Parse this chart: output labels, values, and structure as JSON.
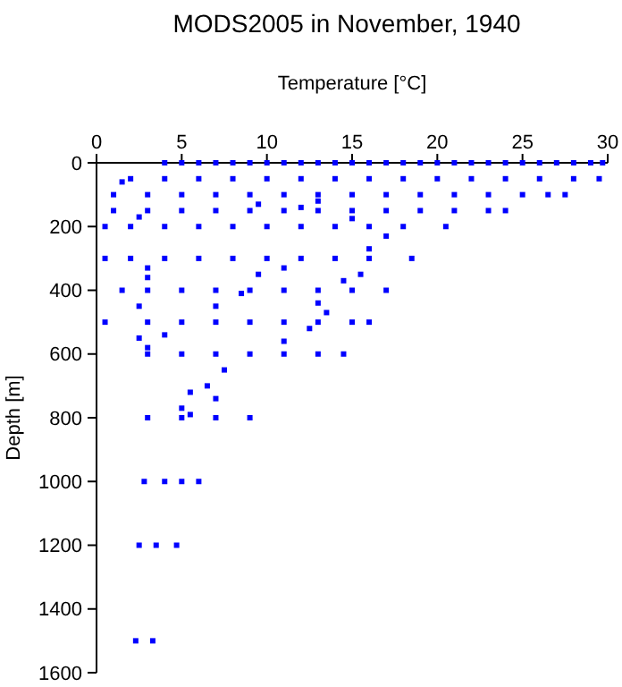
{
  "chart_data": {
    "type": "scatter",
    "title": "MODS2005 in November, 1940",
    "xlabel": "Temperature [°C]",
    "ylabel": "Depth [m]",
    "xlim": [
      0,
      30
    ],
    "ylim": [
      1600,
      0
    ],
    "xticks": [
      0,
      5,
      10,
      15,
      20,
      25,
      30
    ],
    "yticks": [
      0,
      200,
      400,
      600,
      800,
      1000,
      1200,
      1400,
      1600
    ],
    "grid": false,
    "marker": "square",
    "series": [
      {
        "color": "#0000ff",
        "x": [
          4,
          5,
          6,
          7,
          8,
          9,
          10,
          11,
          12,
          13,
          14,
          15,
          16,
          17,
          18,
          19,
          20,
          21,
          22,
          23,
          24,
          25,
          26,
          27,
          28,
          29,
          29.7,
          2,
          4,
          6,
          8,
          10,
          12,
          14,
          16,
          18,
          20,
          22,
          24,
          26,
          28,
          29.5,
          1,
          3,
          5,
          7,
          9,
          11,
          13,
          15,
          17,
          19,
          21,
          23,
          25,
          26.5,
          27.5,
          1,
          3,
          5,
          7,
          9,
          11,
          13,
          15,
          17,
          19,
          21,
          23,
          24,
          0.5,
          2,
          4,
          6,
          8,
          10,
          12,
          14,
          16,
          18,
          20.5,
          0.5,
          2,
          4,
          6,
          8,
          10,
          12,
          14,
          16,
          18.5,
          1.5,
          3,
          5,
          7,
          9,
          11,
          13,
          15,
          17,
          0.5,
          3,
          5,
          7,
          9,
          11,
          13,
          15,
          16,
          3,
          5,
          7,
          9,
          11,
          13,
          14.5,
          3,
          5,
          7,
          9,
          2.8,
          4,
          5,
          6,
          2.5,
          3.5,
          4.7,
          2.3,
          3.3,
          1.5,
          13,
          9.5,
          12,
          2.5,
          15,
          17,
          16,
          11,
          9.5,
          15.5,
          14.5,
          8.5,
          13,
          7,
          13.5,
          12.5,
          11,
          7.5,
          6.5,
          5.5,
          7,
          5,
          5.5,
          3,
          3,
          2.5,
          2.5,
          4,
          3
        ],
        "values": [
          0,
          0,
          0,
          0,
          0,
          0,
          0,
          0,
          0,
          0,
          0,
          0,
          0,
          0,
          0,
          0,
          0,
          0,
          0,
          0,
          0,
          0,
          0,
          0,
          0,
          0,
          0,
          50,
          50,
          50,
          50,
          50,
          50,
          50,
          50,
          50,
          50,
          50,
          50,
          50,
          50,
          50,
          100,
          100,
          100,
          100,
          100,
          100,
          100,
          100,
          100,
          100,
          100,
          100,
          100,
          100,
          100,
          150,
          150,
          150,
          150,
          150,
          150,
          150,
          150,
          150,
          150,
          150,
          150,
          150,
          200,
          200,
          200,
          200,
          200,
          200,
          200,
          200,
          200,
          200,
          200,
          300,
          300,
          300,
          300,
          300,
          300,
          300,
          300,
          300,
          300,
          400,
          400,
          400,
          400,
          400,
          400,
          400,
          400,
          400,
          500,
          500,
          500,
          500,
          500,
          500,
          500,
          500,
          500,
          600,
          600,
          600,
          600,
          600,
          600,
          600,
          800,
          800,
          800,
          800,
          1000,
          1000,
          1000,
          1000,
          1200,
          1200,
          1200,
          1500,
          1500,
          60,
          120,
          130,
          140,
          170,
          175,
          230,
          270,
          330,
          350,
          350,
          370,
          410,
          440,
          450,
          470,
          520,
          560,
          650,
          700,
          720,
          740,
          770,
          790,
          330,
          360,
          450,
          550,
          540,
          580
        ]
      }
    ]
  }
}
